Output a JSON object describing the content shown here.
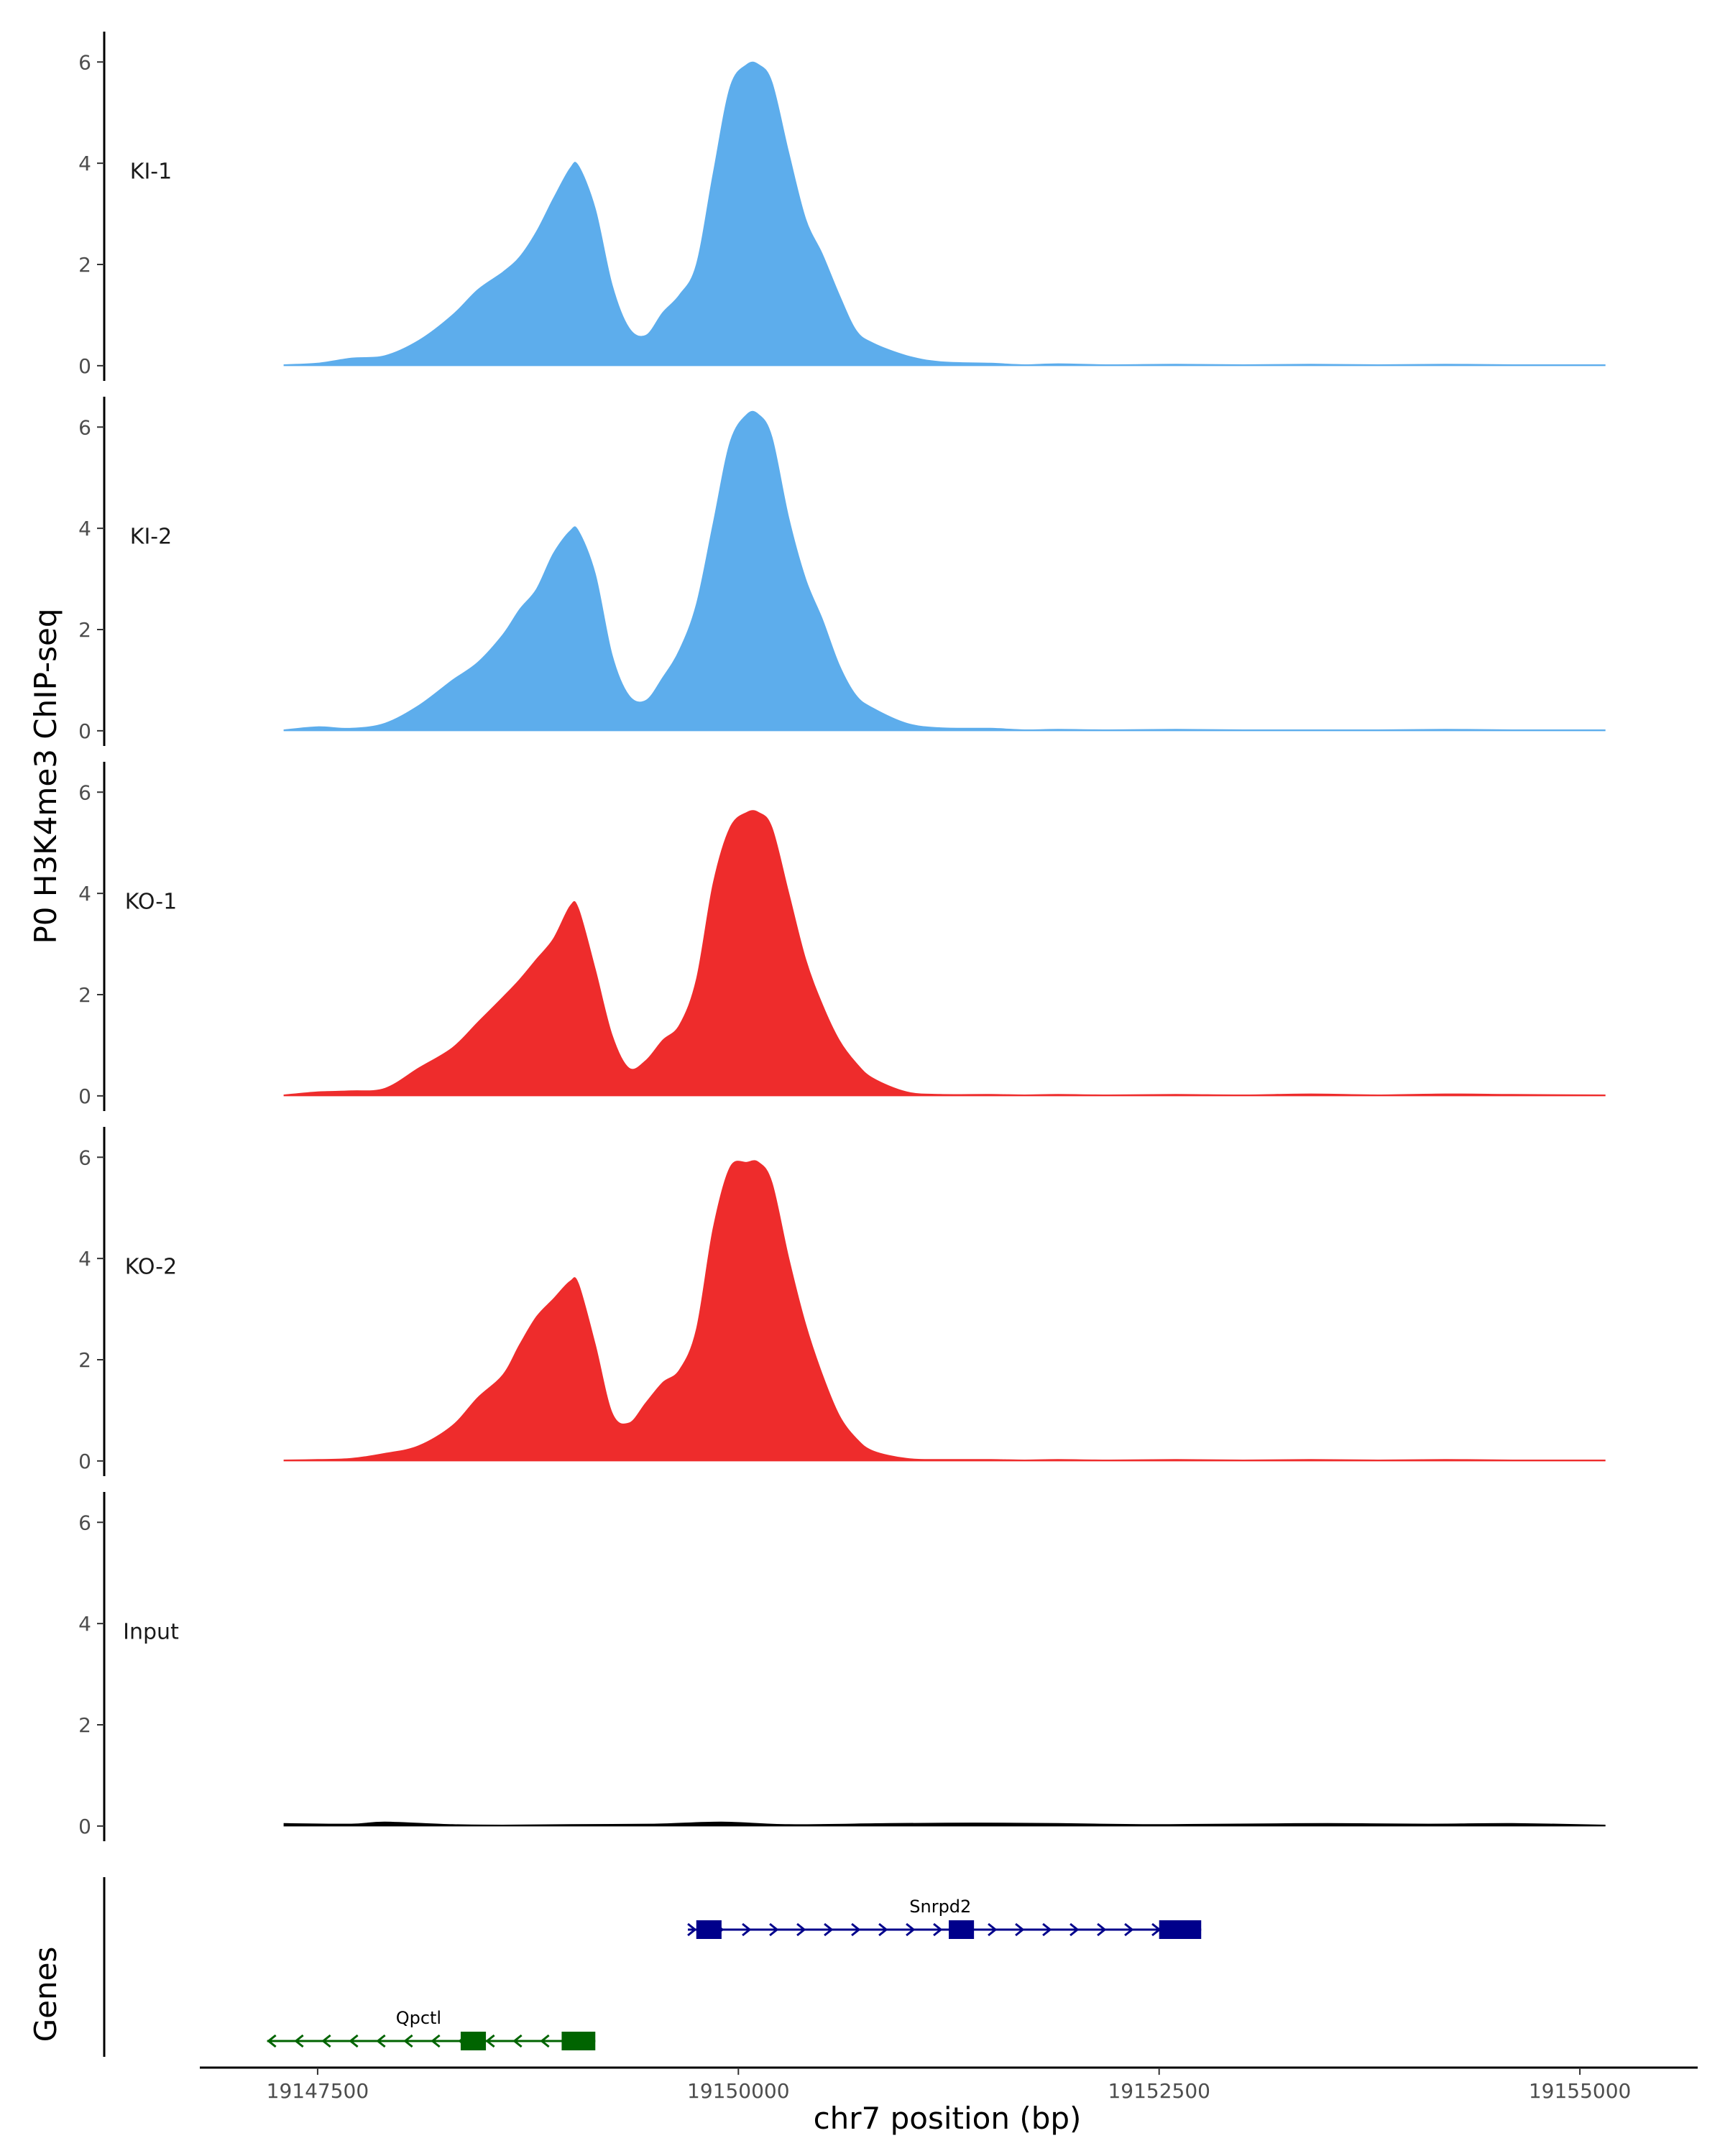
{
  "chart_data": {
    "type": "area",
    "title": "",
    "ylabel": "P0 H3K4me3 ChIP-seq",
    "xlabel": "chr7 position (bp)",
    "genes_label": "Genes",
    "xlim": [
      19146800,
      19155700
    ],
    "ylim": [
      -0.3,
      6.6
    ],
    "y_ticks": [
      0,
      2,
      4,
      6
    ],
    "x_ticks": [
      19147500,
      19150000,
      19152500,
      19155000
    ],
    "x_tick_labels": [
      "19147500",
      "19150000",
      "19152500",
      "19155000"
    ],
    "x_range_signal": [
      19147300,
      19155150
    ],
    "colors": {
      "KI": "#5DADEC",
      "KO": "#EE2C2C",
      "Input": "#000000",
      "gene_plus": "#00008B",
      "gene_minus": "#006400"
    },
    "tracks": [
      {
        "name": "KI-1",
        "color": "#5DADEC",
        "x": [
          19147300,
          19147500,
          19147700,
          19147900,
          19148100,
          19148300,
          19148450,
          19148600,
          19148700,
          19148800,
          19148900,
          19149000,
          19149050,
          19149150,
          19149250,
          19149350,
          19149450,
          19149550,
          19149650,
          19149750,
          19149850,
          19149950,
          19150050,
          19150120,
          19150200,
          19150300,
          19150400,
          19150500,
          19150600,
          19150700,
          19150800,
          19151000,
          19151200,
          19151500,
          19151700,
          19151900,
          19152200,
          19152600,
          19153000,
          19153400,
          19153800,
          19154200,
          19154600,
          19155150
        ],
        "y": [
          0.02,
          0.05,
          0.15,
          0.2,
          0.5,
          1.0,
          1.5,
          1.85,
          2.15,
          2.65,
          3.3,
          3.9,
          3.95,
          3.1,
          1.6,
          0.75,
          0.6,
          1.05,
          1.4,
          2.0,
          3.8,
          5.5,
          5.95,
          5.95,
          5.6,
          4.2,
          2.9,
          2.2,
          1.4,
          0.7,
          0.45,
          0.2,
          0.08,
          0.05,
          0.02,
          0.04,
          0.02,
          0.03,
          0.02,
          0.03,
          0.02,
          0.03,
          0.02,
          0.02
        ]
      },
      {
        "name": "KI-2",
        "color": "#5DADEC",
        "x": [
          19147300,
          19147500,
          19147700,
          19147900,
          19148100,
          19148300,
          19148450,
          19148600,
          19148700,
          19148800,
          19148900,
          19149000,
          19149050,
          19149150,
          19149250,
          19149350,
          19149450,
          19149550,
          19149650,
          19149750,
          19149850,
          19149950,
          19150050,
          19150120,
          19150200,
          19150300,
          19150400,
          19150500,
          19150600,
          19150700,
          19150800,
          19151000,
          19151200,
          19151500,
          19151700,
          19151900,
          19152200,
          19152600,
          19153000,
          19153400,
          19153800,
          19154200,
          19154600,
          19155150
        ],
        "y": [
          0.02,
          0.08,
          0.05,
          0.15,
          0.5,
          1.0,
          1.35,
          1.9,
          2.4,
          2.8,
          3.5,
          3.95,
          3.95,
          3.1,
          1.5,
          0.7,
          0.6,
          1.05,
          1.6,
          2.5,
          4.1,
          5.7,
          6.25,
          6.25,
          5.8,
          4.2,
          3.0,
          2.2,
          1.3,
          0.7,
          0.45,
          0.15,
          0.06,
          0.05,
          0.02,
          0.03,
          0.02,
          0.03,
          0.02,
          0.02,
          0.02,
          0.03,
          0.02,
          0.02
        ]
      },
      {
        "name": "KO-1",
        "color": "#EE2C2C",
        "x": [
          19147300,
          19147500,
          19147700,
          19147900,
          19148100,
          19148300,
          19148450,
          19148600,
          19148700,
          19148800,
          19148900,
          19149000,
          19149050,
          19149150,
          19149250,
          19149350,
          19149450,
          19149550,
          19149650,
          19149750,
          19149850,
          19149950,
          19150050,
          19150120,
          19150200,
          19150300,
          19150400,
          19150500,
          19150600,
          19150700,
          19150800,
          19151000,
          19151200,
          19151500,
          19151700,
          19151900,
          19152200,
          19152600,
          19153000,
          19153400,
          19153800,
          19154200,
          19154600,
          19155150
        ],
        "y": [
          0.02,
          0.08,
          0.1,
          0.15,
          0.55,
          0.95,
          1.45,
          1.95,
          2.3,
          2.7,
          3.1,
          3.75,
          3.7,
          2.5,
          1.2,
          0.55,
          0.7,
          1.1,
          1.4,
          2.3,
          4.2,
          5.3,
          5.6,
          5.6,
          5.3,
          4.0,
          2.7,
          1.8,
          1.1,
          0.65,
          0.35,
          0.08,
          0.03,
          0.03,
          0.02,
          0.03,
          0.02,
          0.03,
          0.02,
          0.04,
          0.02,
          0.04,
          0.03,
          0.02
        ]
      },
      {
        "name": "KO-2",
        "color": "#EE2C2C",
        "x": [
          19147300,
          19147500,
          19147700,
          19147900,
          19148100,
          19148300,
          19148450,
          19148600,
          19148700,
          19148800,
          19148900,
          19149000,
          19149050,
          19149150,
          19149250,
          19149350,
          19149450,
          19149550,
          19149650,
          19149750,
          19149850,
          19149950,
          19150050,
          19150120,
          19150200,
          19150300,
          19150400,
          19150500,
          19150600,
          19150700,
          19150800,
          19151000,
          19151200,
          19151500,
          19151700,
          19151900,
          19152200,
          19152600,
          19153000,
          19153400,
          19153800,
          19154200,
          19154600,
          19155150
        ],
        "y": [
          0.02,
          0.03,
          0.05,
          0.15,
          0.3,
          0.7,
          1.25,
          1.7,
          2.3,
          2.85,
          3.2,
          3.55,
          3.5,
          2.3,
          0.95,
          0.75,
          1.15,
          1.55,
          1.8,
          2.6,
          4.6,
          5.8,
          5.9,
          5.9,
          5.5,
          4.0,
          2.7,
          1.7,
          0.9,
          0.45,
          0.2,
          0.05,
          0.03,
          0.03,
          0.02,
          0.03,
          0.02,
          0.03,
          0.02,
          0.03,
          0.02,
          0.03,
          0.02,
          0.02
        ]
      },
      {
        "name": "Input",
        "color": "#000000",
        "x": [
          19147300,
          19147700,
          19147900,
          19148300,
          19148600,
          19149000,
          19149500,
          19149900,
          19150300,
          19150900,
          19151400,
          19151900,
          19152400,
          19152900,
          19153500,
          19154100,
          19154600,
          19155150
        ],
        "y": [
          0.05,
          0.04,
          0.08,
          0.03,
          0.02,
          0.03,
          0.04,
          0.08,
          0.03,
          0.05,
          0.06,
          0.05,
          0.03,
          0.04,
          0.05,
          0.04,
          0.05,
          0.02
        ]
      }
    ],
    "genes": [
      {
        "name": "Snrpd2",
        "strand": "+",
        "start": 19149700,
        "end": 19152750,
        "exons": [
          [
            19149750,
            19149900
          ],
          [
            19151250,
            19151400
          ],
          [
            19152500,
            19152750
          ]
        ],
        "color": "#00008B"
      },
      {
        "name": "Qpctl",
        "strand": "-",
        "start": 19147200,
        "end": 19149150,
        "exons": [
          [
            19148350,
            19148500
          ],
          [
            19148950,
            19149150
          ]
        ],
        "color": "#006400"
      }
    ]
  }
}
